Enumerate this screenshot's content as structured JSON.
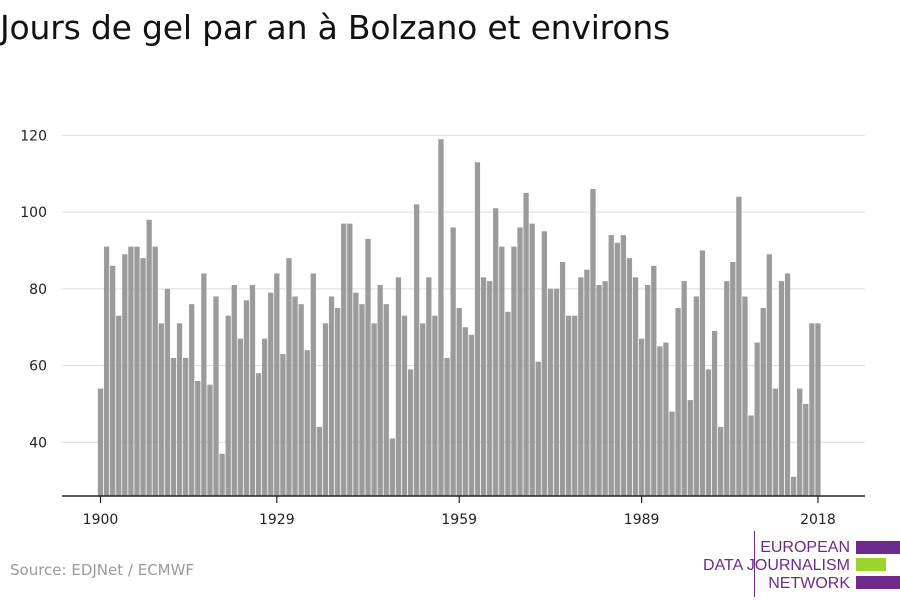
{
  "title": "Jours de gel par an à Bolzano et environs",
  "source": "Source: EDJNet / ECMWF",
  "logo": {
    "lines": [
      "EUROPEAN",
      "DATA JOURNALISM",
      "NETWORK"
    ],
    "colors": {
      "purple": "#6d2a8a",
      "green": "#9bd32a"
    }
  },
  "colors": {
    "bar": "#9b9b9b",
    "grid": "#dcdcdc",
    "axis": "#222222",
    "tick_text": "#222222"
  },
  "chart_data": {
    "type": "bar",
    "title": "Jours de gel par an à Bolzano et environs",
    "xlabel": "",
    "ylabel": "",
    "x_start": 1900,
    "x_end": 2021,
    "ylim": [
      26,
      124
    ],
    "yticks": [
      40,
      60,
      80,
      100,
      120
    ],
    "xticks": [
      1900,
      1929,
      1959,
      1989,
      2018
    ],
    "grid": true,
    "values": [
      54,
      91,
      86,
      73,
      89,
      91,
      91,
      88,
      98,
      91,
      71,
      80,
      62,
      71,
      62,
      76,
      56,
      84,
      55,
      78,
      37,
      73,
      81,
      67,
      77,
      81,
      58,
      67,
      79,
      84,
      63,
      88,
      78,
      76,
      64,
      84,
      44,
      71,
      78,
      75,
      97,
      97,
      79,
      76,
      93,
      71,
      81,
      76,
      41,
      83,
      73,
      59,
      102,
      71,
      83,
      73,
      119,
      62,
      96,
      75,
      70,
      68,
      113,
      83,
      82,
      101,
      91,
      74,
      91,
      96,
      105,
      97,
      61,
      95,
      80,
      80,
      87,
      73,
      73,
      83,
      85,
      106,
      81,
      82,
      94,
      92,
      94,
      88,
      83,
      67,
      81,
      86,
      65,
      66,
      48,
      75,
      82,
      51,
      78,
      90,
      59,
      69,
      44,
      82,
      87,
      104,
      78,
      47,
      66,
      75,
      89,
      54,
      82,
      84,
      31,
      54,
      50,
      71,
      71
    ]
  }
}
